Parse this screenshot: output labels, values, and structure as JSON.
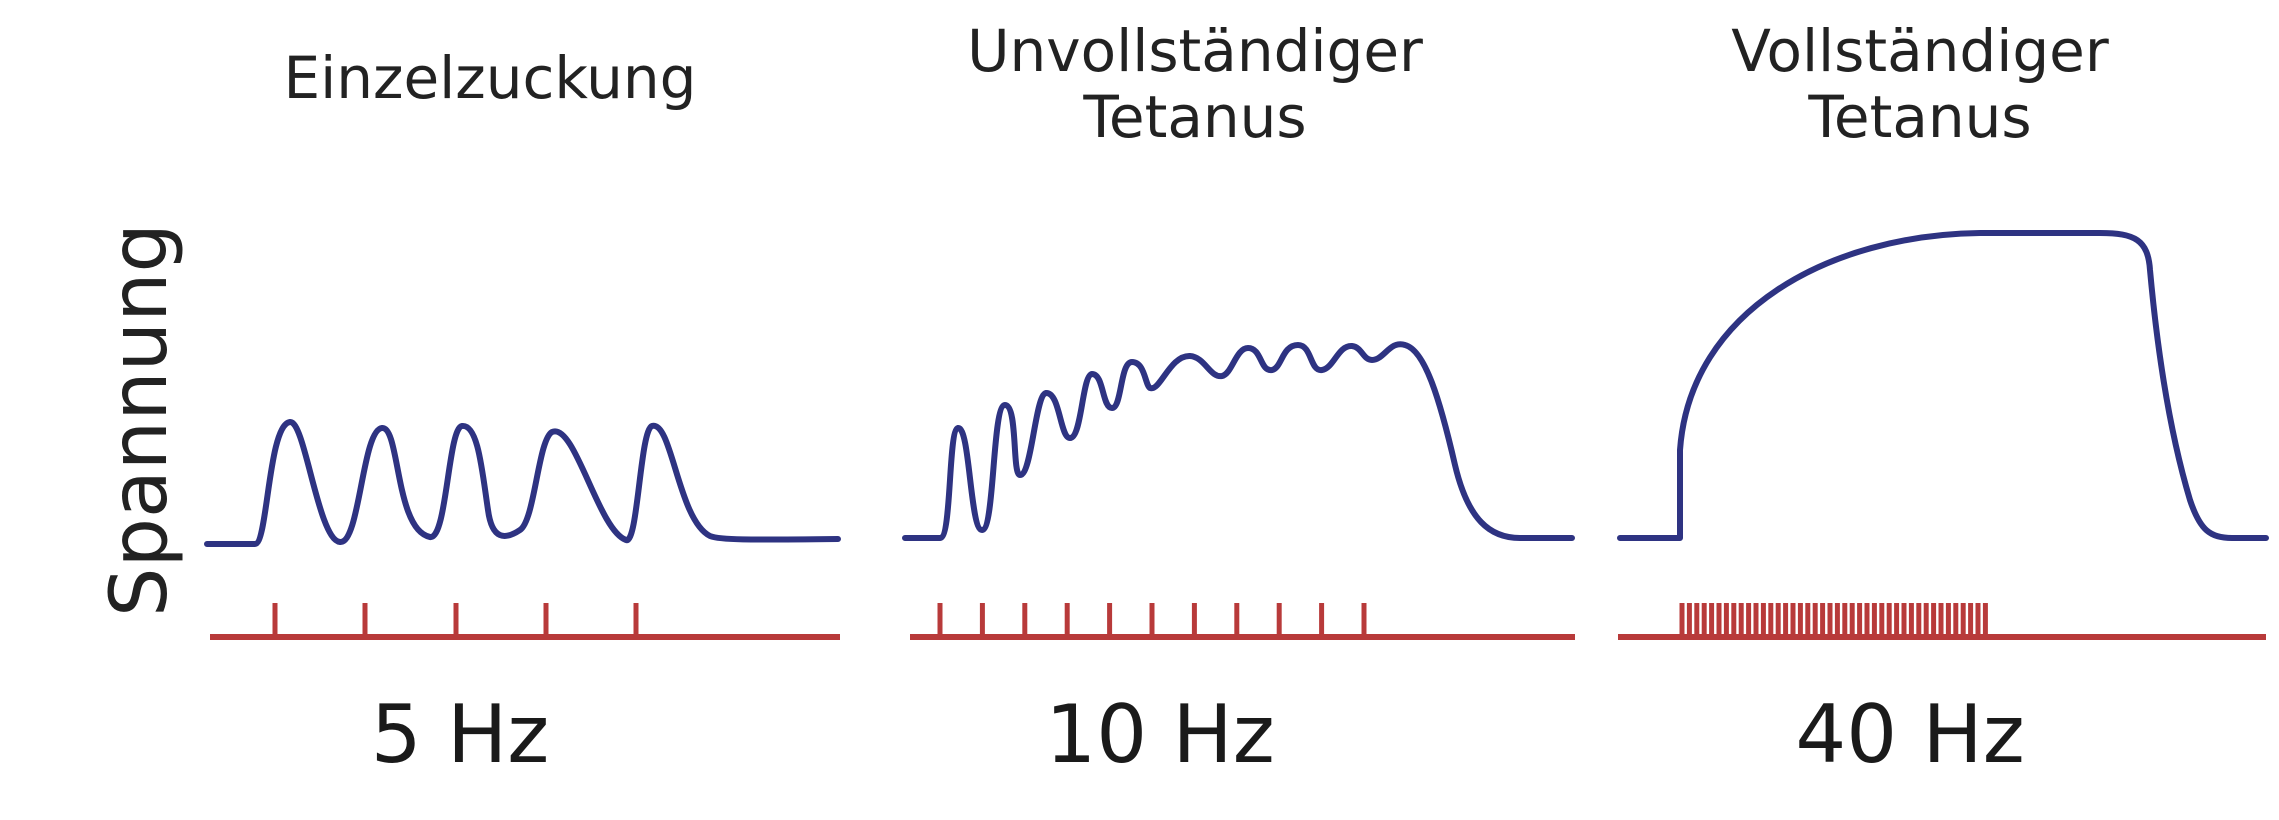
{
  "y_label": "Spannung",
  "colors": {
    "tension": "#2e3382",
    "stimulus": "#b83a3a",
    "text": "#222222"
  },
  "panels": [
    {
      "title_line1": "Einzelzuckung",
      "title_line2": "",
      "frequency": "5 Hz"
    },
    {
      "title_line1": "Unvollständiger",
      "title_line2": "Tetanus",
      "frequency": "10 Hz"
    },
    {
      "title_line1": "Vollständiger",
      "title_line2": "Tetanus",
      "frequency": "40 Hz"
    }
  ]
}
